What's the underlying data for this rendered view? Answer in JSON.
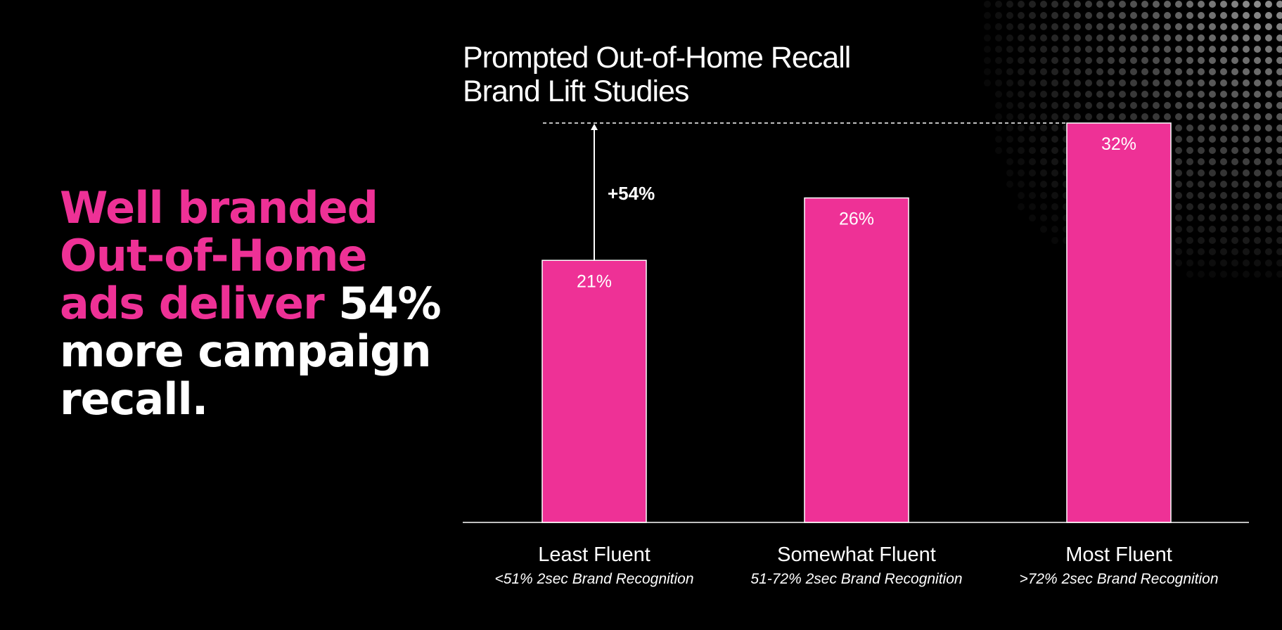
{
  "headline": {
    "line1": "Well branded",
    "line2": "Out-of-Home",
    "line3_pink": "ads deliver",
    "line3_white": "54%",
    "line4": "more campaign",
    "line5": "recall."
  },
  "colors": {
    "background": "#000000",
    "accent": "#ee3196",
    "text": "#ffffff"
  },
  "chart_data": {
    "type": "bar",
    "title_line1": "Prompted Out-of-Home Recall",
    "title_line2": "Brand Lift Studies",
    "categories": [
      "Least Fluent",
      "Somewhat Fluent",
      "Most Fluent"
    ],
    "subtitles": [
      "<51% 2sec Brand Recognition",
      "51-72% 2sec Brand Recognition",
      ">72% 2sec Brand Recognition"
    ],
    "values": [
      21,
      26,
      32
    ],
    "value_labels": [
      "21%",
      "26%",
      "32%"
    ],
    "annotation": "+54%",
    "ylim": [
      0,
      32
    ],
    "grid": false,
    "xlabel": "",
    "ylabel": ""
  }
}
